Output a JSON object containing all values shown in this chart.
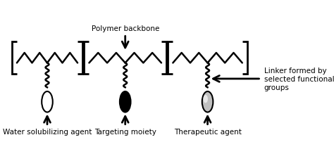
{
  "title": "",
  "background_color": "#ffffff",
  "bracket_color": "#000000",
  "backbone_color": "#000000",
  "linker_color": "#000000",
  "ellipse_colors": [
    "#ffffff",
    "#000000",
    "#aaaaaa"
  ],
  "ellipse_edge_color": "#000000",
  "labels": {
    "polymer_backbone": "Polymer backbone",
    "water_agent": "Water solubilizing agent",
    "targeting": "Targeting moiety",
    "therapeutic": "Therapeutic agent",
    "linker": "Linker formed by\nselected functional\ngroups"
  },
  "figsize": [
    4.74,
    2.3
  ],
  "dpi": 100
}
